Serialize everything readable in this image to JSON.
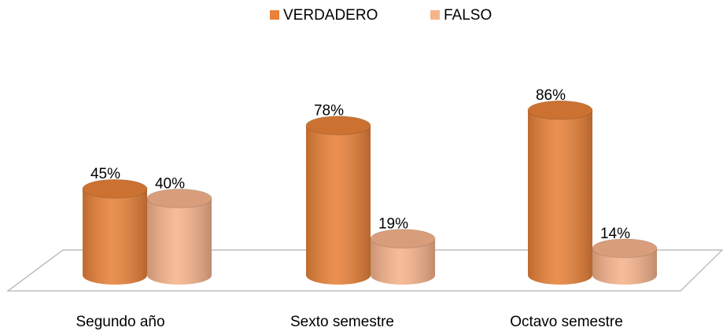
{
  "chart_data": {
    "type": "bar3d",
    "categories": [
      "Segundo año",
      "Sexto semestre",
      "Octavo semestre"
    ],
    "series": [
      {
        "name": "VERDADERO",
        "color": "#e8823a",
        "values": [
          45,
          78,
          86
        ],
        "value_labels": [
          "45%",
          "78%",
          "86%"
        ]
      },
      {
        "name": "FALSO",
        "color": "#f6b48c",
        "values": [
          40,
          19,
          14
        ],
        "value_labels": [
          "40%",
          "19%",
          "14%"
        ]
      }
    ],
    "legend": "top"
  }
}
